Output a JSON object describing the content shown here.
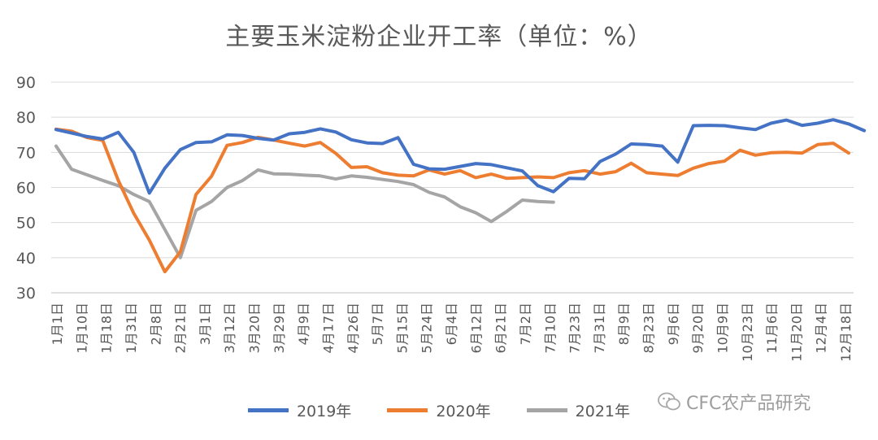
{
  "chart_data": {
    "type": "line",
    "title": "主要玉米淀粉企业开工率（单位：%）",
    "ylim": [
      30,
      90
    ],
    "yticks": [
      30,
      40,
      50,
      60,
      70,
      80,
      90
    ],
    "grid": "horizontal",
    "legend_position": "bottom",
    "x_tick_labels": [
      "1月1日",
      "1月10日",
      "1月18日",
      "1月31日",
      "2月8日",
      "2月21日",
      "3月1日",
      "3月12日",
      "3月20日",
      "3月29日",
      "4月9日",
      "4月17日",
      "4月26日",
      "5月7日",
      "5月15日",
      "5月24日",
      "6月4日",
      "6月12日",
      "6月21日",
      "7月2日",
      "7月10日",
      "7月23日",
      "7月31日",
      "8月9日",
      "8月23日",
      "9月6日",
      "9月20日",
      "10月9日",
      "10月23日",
      "11月6日",
      "11月20日",
      "12月4日",
      "12月18日"
    ],
    "series": [
      {
        "name": "2019年",
        "color": "#4472C4",
        "values": [
          76.5,
          75.5,
          74.5,
          73.8,
          75.7,
          70,
          58.4,
          65.5,
          70.8,
          72.8,
          73,
          75,
          74.8,
          74,
          73.5,
          75.3,
          75.7,
          76.7,
          75.8,
          73.6,
          72.7,
          72.5,
          74.2,
          66.6,
          65.3,
          65.2,
          66,
          66.8,
          66.5,
          65.6,
          64.7,
          60.5,
          58.8,
          62.6,
          62.5,
          67.4,
          69.5,
          72.4,
          72.2,
          71.8,
          67.2,
          77.6,
          77.7,
          77.6,
          77,
          76.5,
          78.3,
          79.2,
          77.7,
          78.3,
          79.3,
          78.1,
          76.2
        ]
      },
      {
        "name": "2020年",
        "color": "#ED7D31",
        "values": [
          76.6,
          76,
          74.2,
          73.4,
          62,
          52.6,
          45,
          36,
          41.7,
          58,
          63.2,
          72,
          72.8,
          74.3,
          73.5,
          72.6,
          71.8,
          72.8,
          69.7,
          65.7,
          65.9,
          64.2,
          63.5,
          63.3,
          65,
          63.8,
          64.8,
          62.8,
          63.8,
          62.6,
          62.8,
          63,
          62.8,
          64.2,
          64.8,
          63.8,
          64.5,
          66.9,
          64.2,
          63.8,
          63.4,
          65.5,
          66.8,
          67.5,
          70.6,
          69.2,
          69.9,
          70,
          69.8,
          72.2,
          72.6,
          69.8
        ]
      },
      {
        "name": "2021年",
        "color": "#A5A5A5",
        "values": [
          71.8,
          65.2,
          63.6,
          62,
          60.5,
          58,
          56,
          48,
          40,
          53.5,
          56,
          60,
          62,
          65,
          63.9,
          63.8,
          63.5,
          63.3,
          62.4,
          63.3,
          62.9,
          62.3,
          61.7,
          60.8,
          58.6,
          57.3,
          54.5,
          52.8,
          50.3,
          53.2,
          56.4,
          56,
          55.8
        ]
      }
    ]
  },
  "legend": {
    "s2019": "2019年",
    "s2020": "2020年",
    "s2021": "2021年"
  },
  "watermark": {
    "text": "CFC农产品研究",
    "icon": "wechat-icon"
  }
}
